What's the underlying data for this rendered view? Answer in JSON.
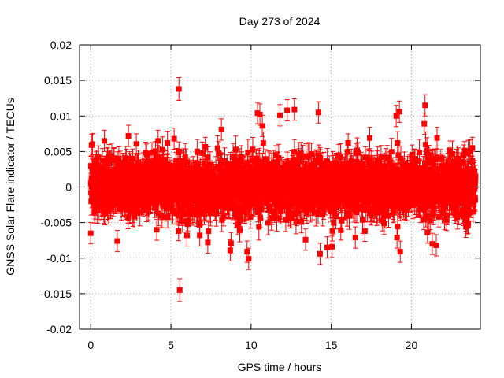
{
  "chart_data": {
    "type": "scatter",
    "title": "Day 273 of 2024",
    "xlabel": "GPS time / hours",
    "ylabel": "GNSS Solar Flare indicator / TECUs",
    "xlim": [
      -0.7,
      24.3
    ],
    "ylim": [
      -0.02,
      0.02
    ],
    "xticks": [
      0,
      5,
      10,
      15,
      20
    ],
    "xtick_labels": [
      "0",
      "5",
      "10",
      "15",
      "20"
    ],
    "yticks": [
      -0.02,
      -0.015,
      -0.01,
      -0.005,
      0,
      0.005,
      0.01,
      0.015,
      0.02
    ],
    "ytick_labels": [
      "-0.02",
      "-0.015",
      "-0.01",
      "-0.005",
      "0",
      "0.005",
      "0.01",
      "0.015",
      "0.02"
    ],
    "grid": true,
    "series_color": "#ff0000",
    "marker": "filled-square-with-error-bars",
    "point_count": 2880,
    "x_range_covered": [
      0,
      24
    ],
    "typical_spread": [
      -0.004,
      0.004
    ],
    "typical_error_bar": 0.0016,
    "outliers": [
      {
        "x": 5.5,
        "y": 0.0138,
        "err": 0.0016
      },
      {
        "x": 5.55,
        "y": -0.0145,
        "err": 0.0016
      },
      {
        "x": 0.05,
        "y": 0.0059,
        "err": 0.0015
      },
      {
        "x": 0.0,
        "y": -0.0065,
        "err": 0.0015
      },
      {
        "x": 0.85,
        "y": 0.0065,
        "err": 0.0015
      },
      {
        "x": 1.65,
        "y": -0.0076,
        "err": 0.0015
      },
      {
        "x": 2.35,
        "y": 0.0072,
        "err": 0.0015
      },
      {
        "x": 4.2,
        "y": 0.0065,
        "err": 0.0015
      },
      {
        "x": 5.2,
        "y": 0.0068,
        "err": 0.0015
      },
      {
        "x": 6.0,
        "y": -0.0068,
        "err": 0.0015
      },
      {
        "x": 6.8,
        "y": -0.0068,
        "err": 0.0015
      },
      {
        "x": 7.3,
        "y": -0.0078,
        "err": 0.0015
      },
      {
        "x": 8.15,
        "y": 0.0081,
        "err": 0.0015
      },
      {
        "x": 8.7,
        "y": -0.0089,
        "err": 0.0015
      },
      {
        "x": 8.75,
        "y": -0.0079,
        "err": 0.0015
      },
      {
        "x": 9.75,
        "y": -0.0091,
        "err": 0.0015
      },
      {
        "x": 9.85,
        "y": -0.0101,
        "err": 0.0015
      },
      {
        "x": 10.4,
        "y": 0.0104,
        "err": 0.0015
      },
      {
        "x": 10.55,
        "y": 0.0102,
        "err": 0.0015
      },
      {
        "x": 10.7,
        "y": 0.0086,
        "err": 0.0015
      },
      {
        "x": 11.8,
        "y": 0.0101,
        "err": 0.0015
      },
      {
        "x": 12.25,
        "y": 0.0108,
        "err": 0.0015
      },
      {
        "x": 12.7,
        "y": 0.0109,
        "err": 0.0015
      },
      {
        "x": 13.4,
        "y": -0.0074,
        "err": 0.0015
      },
      {
        "x": 14.2,
        "y": 0.0105,
        "err": 0.0015
      },
      {
        "x": 14.3,
        "y": -0.0094,
        "err": 0.0015
      },
      {
        "x": 14.75,
        "y": -0.0085,
        "err": 0.0015
      },
      {
        "x": 15.05,
        "y": -0.0084,
        "err": 0.0015
      },
      {
        "x": 16.5,
        "y": -0.0071,
        "err": 0.0015
      },
      {
        "x": 17.4,
        "y": 0.0069,
        "err": 0.0015
      },
      {
        "x": 19.05,
        "y": 0.01,
        "err": 0.0015
      },
      {
        "x": 19.25,
        "y": 0.0106,
        "err": 0.0015
      },
      {
        "x": 19.1,
        "y": -0.0071,
        "err": 0.0015
      },
      {
        "x": 19.3,
        "y": -0.0091,
        "err": 0.0015
      },
      {
        "x": 20.85,
        "y": 0.0115,
        "err": 0.0015
      },
      {
        "x": 20.8,
        "y": 0.0089,
        "err": 0.0015
      },
      {
        "x": 21.0,
        "y": -0.0064,
        "err": 0.0015
      },
      {
        "x": 21.3,
        "y": -0.008,
        "err": 0.0015
      },
      {
        "x": 21.55,
        "y": -0.0082,
        "err": 0.0015
      },
      {
        "x": 21.6,
        "y": 0.0069,
        "err": 0.0015
      },
      {
        "x": 23.4,
        "y": -0.0056,
        "err": 0.0015
      },
      {
        "x": 23.8,
        "y": 0.0055,
        "err": 0.0015
      }
    ]
  }
}
